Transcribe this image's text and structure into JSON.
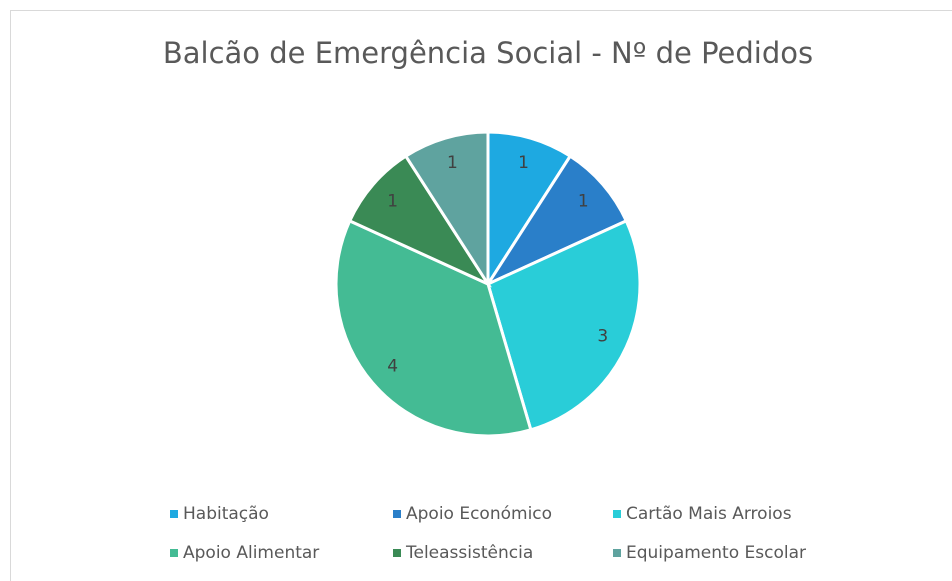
{
  "chart_data": {
    "type": "pie",
    "title": "Balcão de Emergência Social -  Nº de Pedidos",
    "categories": [
      "Habitação",
      "Apoio Económico",
      "Cartão Mais Arroios",
      "Apoio Alimentar",
      "Teleassistência",
      "Equipamento Escolar"
    ],
    "values": [
      1,
      1,
      3,
      4,
      1,
      1
    ],
    "colors": [
      "#1ea9e1",
      "#2a7fc9",
      "#29cdd8",
      "#44bb94",
      "#3a8a55",
      "#5fa39f"
    ],
    "legend": "bottom"
  }
}
